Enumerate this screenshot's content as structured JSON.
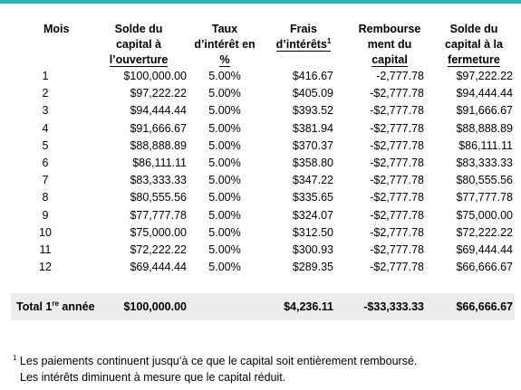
{
  "colors": {
    "top_rule": "#2bb5b3",
    "total_bg": "#ececec"
  },
  "headers": {
    "mois": [
      "Mois"
    ],
    "opening": [
      "Solde du",
      "capital à",
      "l’ouverture"
    ],
    "rate": [
      "Taux",
      "d’intérêt en",
      "%"
    ],
    "interest": [
      "Frais",
      "d’intérêts"
    ],
    "interest_sup": "1",
    "principal": [
      "Rembourse",
      "ment du",
      "capital"
    ],
    "closing": [
      "Solde du",
      "capital à la",
      "fermeture"
    ]
  },
  "rows": [
    [
      "1",
      "$100,000.00",
      "5.00%",
      "$416.67",
      "-2,777.78",
      "$97,222.22"
    ],
    [
      "2",
      "$97,222.22",
      "5.00%",
      "$405.09",
      "-$2,777.78",
      "$94,444.44"
    ],
    [
      "3",
      "$94,444.44",
      "5.00%",
      "$393.52",
      "-$2,777.78",
      "$91,666.67"
    ],
    [
      "4",
      "$91,666.67",
      "5.00%",
      "$381.94",
      "-$2,777.78",
      "$88,888.89"
    ],
    [
      "5",
      "$88,888.89",
      "5.00%",
      "$370.37",
      "-$2,777.78",
      "$86,111.11"
    ],
    [
      "6",
      "$86,111.11",
      "5.00%",
      "$358.80",
      "-$2,777.78",
      "$83,333.33"
    ],
    [
      "7",
      "$83,333.33",
      "5.00%",
      "$347.22",
      "-$2,777.78",
      "$80,555.56"
    ],
    [
      "8",
      "$80,555.56",
      "5.00%",
      "$335.65",
      "-$2,777.78",
      "$77,777.78"
    ],
    [
      "9",
      "$77,777.78",
      "5.00%",
      "$324.07",
      "-$2,777.78",
      "$75,000.00"
    ],
    [
      "10",
      "$75,000.00",
      "5.00%",
      "$312.50",
      "-$2,777.78",
      "$72,222.22"
    ],
    [
      "11",
      "$72,222.22",
      "5.00%",
      "$300.93",
      "-$2,777.78",
      "$69,444.44"
    ],
    [
      "12",
      "$69,444.44",
      "5.00%",
      "$289.35",
      "-$2,777.78",
      "$66,666.67"
    ]
  ],
  "total": {
    "label_pre": "Total 1",
    "label_sup": "re",
    "label_post": " année",
    "opening": "$100,000.00",
    "rate": "",
    "interest": "$4,236.11",
    "principal": "-$33,333.33",
    "closing": "$66,666.67"
  },
  "footnote": {
    "marker": "1",
    "line1": " Les paiements continuent jusqu’à ce que le capital soit entièrement remboursé.",
    "line2": "Les intérêts diminuent à mesure que le capital réduit."
  }
}
